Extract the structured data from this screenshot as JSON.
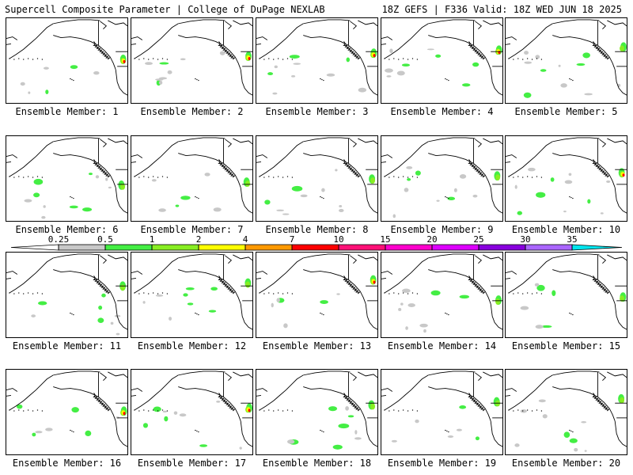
{
  "header": {
    "title": "Supercell Composite Parameter | College of DuPage NEXLAB",
    "run_info": "18Z GEFS | F336 Valid: 18Z WED JUN 18 2025"
  },
  "panel_label_prefix": "Ensemble Member:",
  "members": [
    1,
    2,
    3,
    4,
    5,
    6,
    7,
    8,
    9,
    10,
    11,
    12,
    13,
    14,
    15,
    16,
    17,
    18,
    19,
    20
  ],
  "colorbar": {
    "ticks": [
      "0.25",
      "0.5",
      "1",
      "2",
      "4",
      "7",
      "10",
      "15",
      "20",
      "25",
      "30",
      "35"
    ],
    "colors": [
      "#ffffff",
      "#c8c8c8",
      "#44ee44",
      "#88ee22",
      "#ffff00",
      "#ff9900",
      "#ff0000",
      "#ff1177",
      "#ff00cc",
      "#dd00ff",
      "#8800dd",
      "#aa66ff",
      "#00e5ee"
    ]
  }
}
